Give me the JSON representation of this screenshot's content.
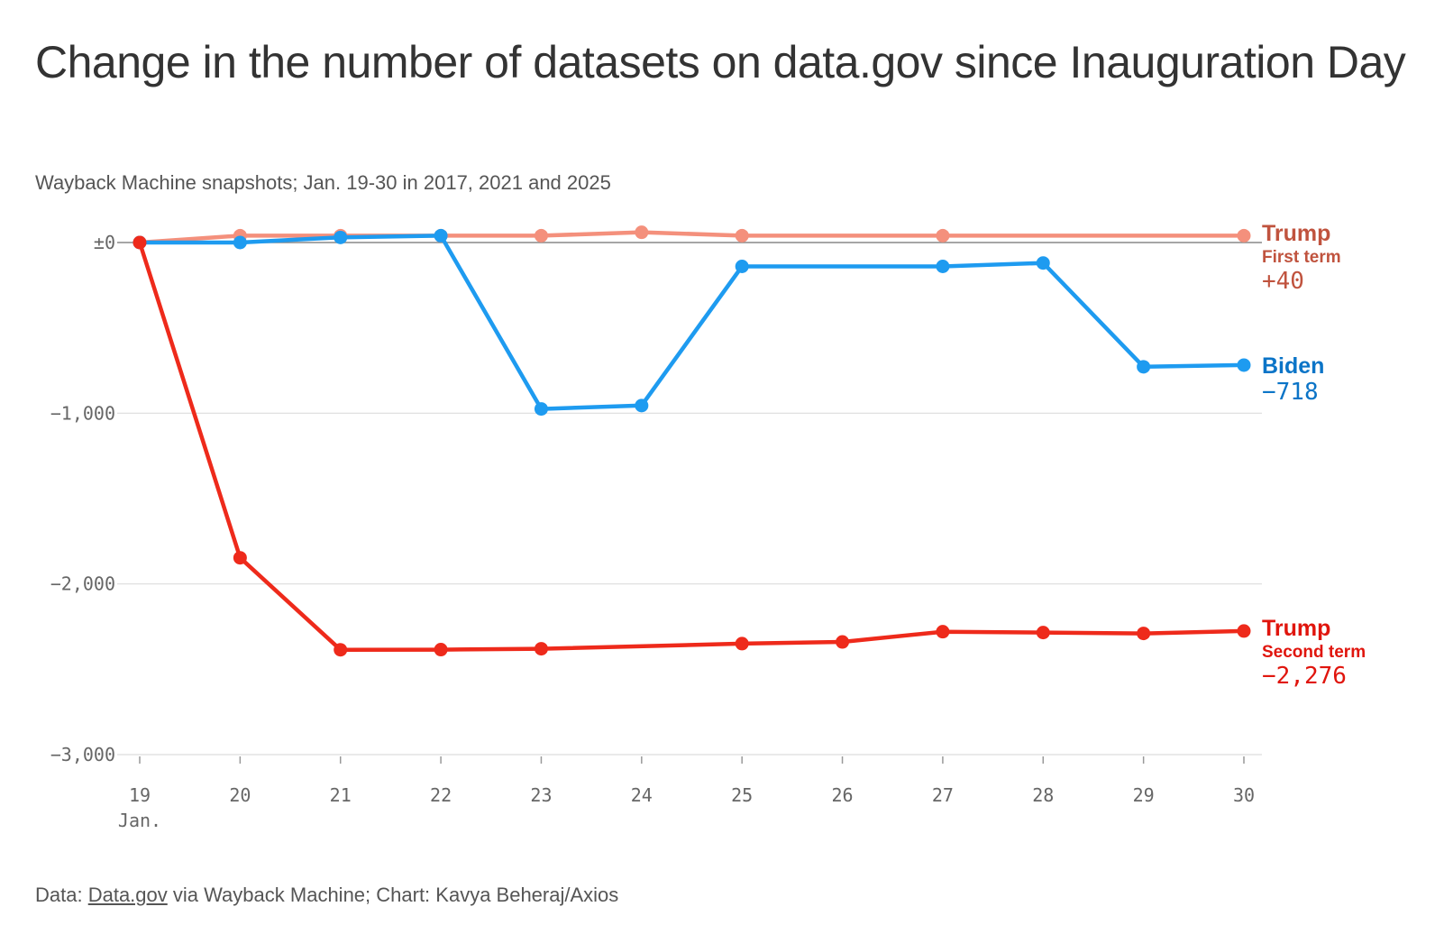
{
  "header": {
    "title": "Change in the number of datasets on data.gov since Inauguration Day",
    "subtitle": "Wayback Machine snapshots; Jan. 19-30 in 2017, 2021 and 2025"
  },
  "footer": {
    "prefix": "Data: ",
    "source_link": "Data.gov",
    "suffix": " via Wayback Machine; Chart: Kavya Beheraj/Axios"
  },
  "chart_data": {
    "type": "line",
    "x": [
      19,
      20,
      21,
      22,
      23,
      24,
      25,
      26,
      27,
      28,
      29,
      30
    ],
    "x_tick_labels": [
      "19",
      "20",
      "21",
      "22",
      "23",
      "24",
      "25",
      "26",
      "27",
      "28",
      "29",
      "30"
    ],
    "x_sublabel": "Jan.",
    "ylim": [
      -3000,
      0
    ],
    "y_ticks": [
      0,
      -1000,
      -2000,
      -3000
    ],
    "y_tick_labels": [
      "±0",
      "−1,000",
      "−2,000",
      "−3,000"
    ],
    "grid": true,
    "legend": "direct labels at right end of each line",
    "series": [
      {
        "name": "Trump",
        "sublabel": "First term",
        "end_label": "+40",
        "color": "#f4907c",
        "points": [
          [
            19,
            0
          ],
          [
            20,
            40
          ],
          [
            21,
            40
          ],
          [
            22,
            40
          ],
          [
            23,
            40
          ],
          [
            24,
            60
          ],
          [
            25,
            40
          ],
          [
            27,
            40
          ],
          [
            30,
            40
          ]
        ]
      },
      {
        "name": "Biden",
        "sublabel": "",
        "end_label": "−718",
        "color": "#1e9bf0",
        "points": [
          [
            19,
            0
          ],
          [
            20,
            0
          ],
          [
            21,
            30
          ],
          [
            22,
            40
          ],
          [
            23,
            -975
          ],
          [
            24,
            -955
          ],
          [
            25,
            -140
          ],
          [
            27,
            -140
          ],
          [
            28,
            -120
          ],
          [
            29,
            -728
          ],
          [
            30,
            -718
          ]
        ]
      },
      {
        "name": "Trump",
        "sublabel": "Second term",
        "end_label": "−2,276",
        "color": "#ee2a1b",
        "points": [
          [
            19,
            0
          ],
          [
            20,
            -1847
          ],
          [
            21,
            -2386
          ],
          [
            22,
            -2385
          ],
          [
            23,
            -2380
          ],
          [
            25,
            -2350
          ],
          [
            26,
            -2340
          ],
          [
            27,
            -2280
          ],
          [
            28,
            -2285
          ],
          [
            29,
            -2290
          ],
          [
            30,
            -2276
          ]
        ]
      }
    ],
    "label_colors": {
      "trump_first": "#c0533e",
      "biden": "#0b74c7",
      "trump_second": "#e0150d"
    }
  }
}
